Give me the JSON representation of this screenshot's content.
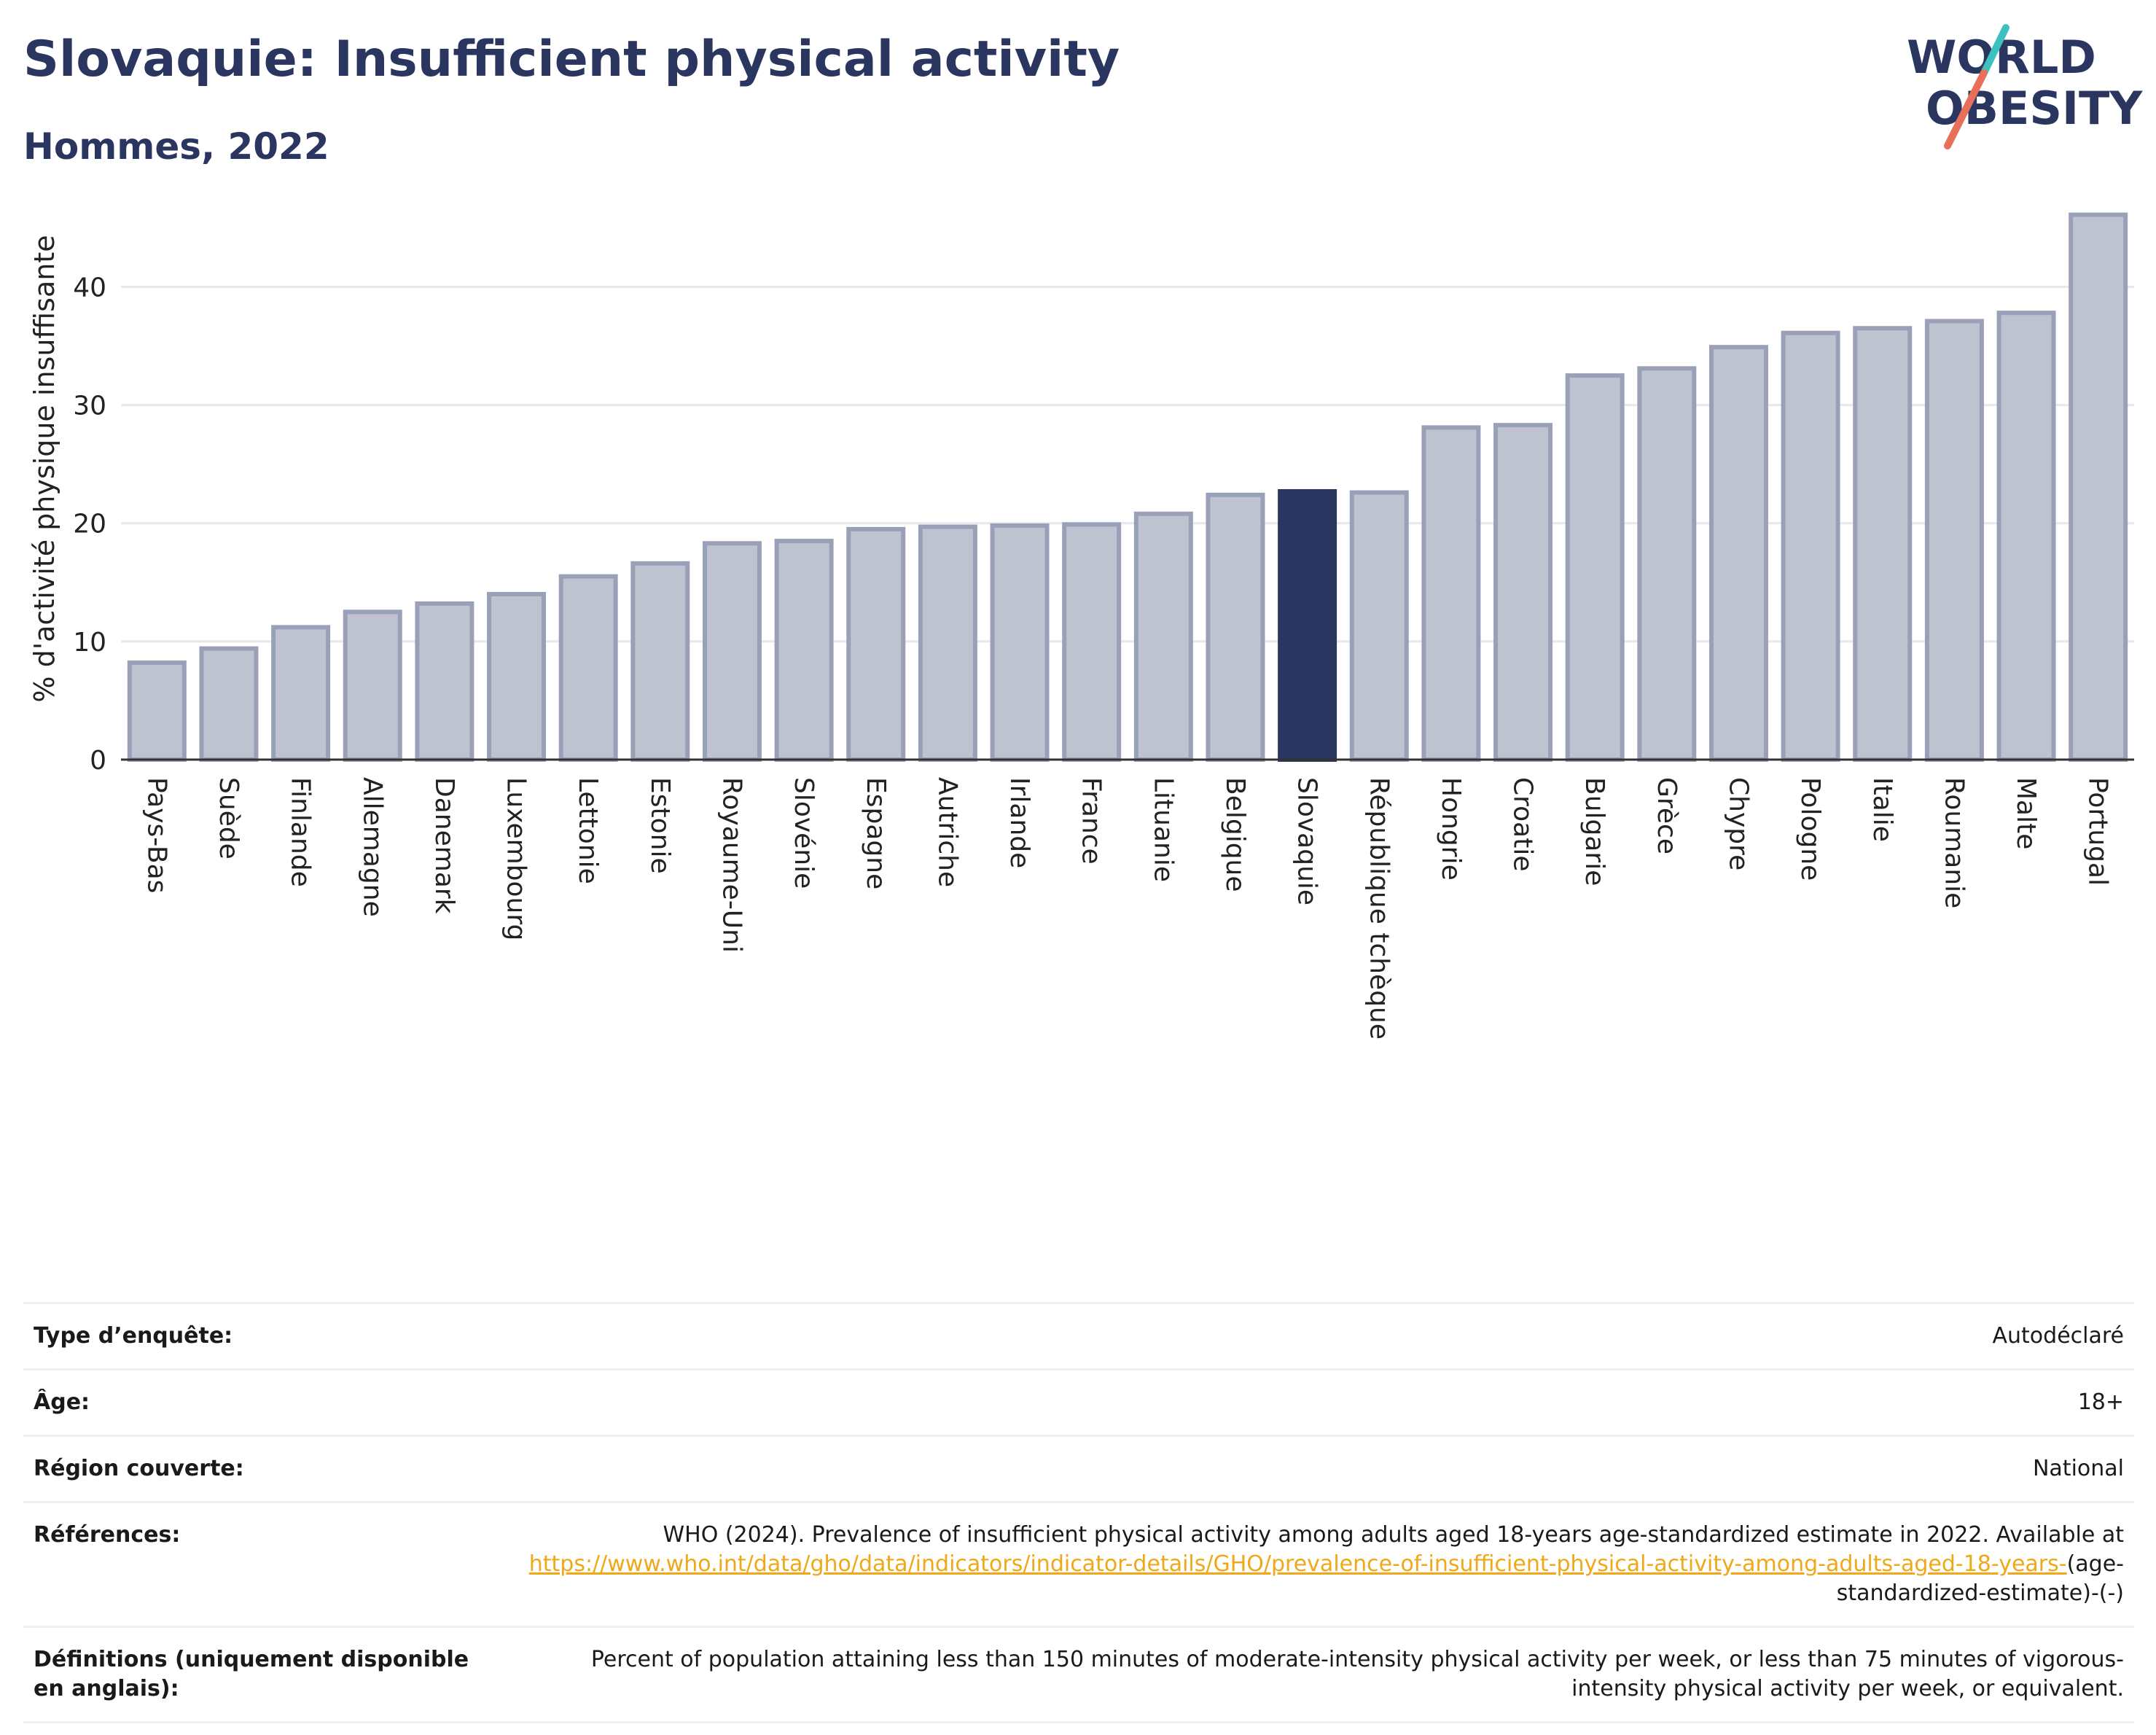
{
  "header": {
    "title": "Slovaquie: Insufficient physical activity",
    "subtitle": "Hommes, 2022"
  },
  "logo": {
    "line1": "WORLD",
    "line2": "OBESITY",
    "text_color": "#2a3560",
    "slash_colors": [
      "#e8705a",
      "#3cc0c0"
    ]
  },
  "chart_data": {
    "type": "bar",
    "title": "Slovaquie: Insufficient physical activity",
    "subtitle": "Hommes, 2022",
    "ylabel": "% d'activité physique insuffisante",
    "xlabel": "",
    "ylim": [
      0,
      47
    ],
    "yticks": [
      0,
      10,
      20,
      30,
      40
    ],
    "grid": true,
    "highlight": "Slovaquie",
    "colors": {
      "bar": "#bfc3d0",
      "bar_edge": "#9aa0b8",
      "highlight": "#2a3560",
      "grid": "#e6e8ee"
    },
    "categories": [
      "Pays-Bas",
      "Suède",
      "Finlande",
      "Allemagne",
      "Danemark",
      "Luxembourg",
      "Lettonie",
      "Estonie",
      "Royaume-Uni",
      "Slovénie",
      "Espagne",
      "Autriche",
      "Irlande",
      "France",
      "Lituanie",
      "Belgique",
      "Slovaquie",
      "République tchèque",
      "Hongrie",
      "Croatie",
      "Bulgarie",
      "Grèce",
      "Chypre",
      "Pologne",
      "Italie",
      "Roumanie",
      "Malte",
      "Portugal"
    ],
    "values": [
      8.2,
      9.4,
      11.2,
      12.5,
      13.2,
      14.0,
      15.5,
      16.6,
      18.3,
      18.5,
      19.5,
      19.7,
      19.8,
      19.9,
      20.8,
      22.4,
      22.7,
      22.6,
      28.1,
      28.3,
      32.5,
      33.1,
      34.9,
      36.1,
      36.5,
      37.1,
      37.8,
      46.1
    ]
  },
  "info": {
    "rows": [
      {
        "key": "Type d’enquête:",
        "value": "Autodéclaré"
      },
      {
        "key": "Âge:",
        "value": "18+"
      },
      {
        "key": "Région couverte:",
        "value": "National"
      }
    ],
    "references": {
      "key": "Références:",
      "text": "WHO (2024). Prevalence of insufficient physical activity among adults aged 18-years age-standardized estimate in 2022. Available at",
      "link": "https://www.who.int/data/gho/data/indicators/indicator-details/GHO/prevalence-of-insufficient-physical-activity-among-adults-aged-18-years-",
      "suffix": "(age-standardized-estimate)-(-)"
    },
    "definitions": {
      "key": "Définitions (uniquement disponible en anglais):",
      "value": "Percent of population attaining less than 150 minutes of moderate-intensity physical activity per week, or less than 75 minutes of vigorous-intensity physical activity per week, or equivalent."
    }
  }
}
